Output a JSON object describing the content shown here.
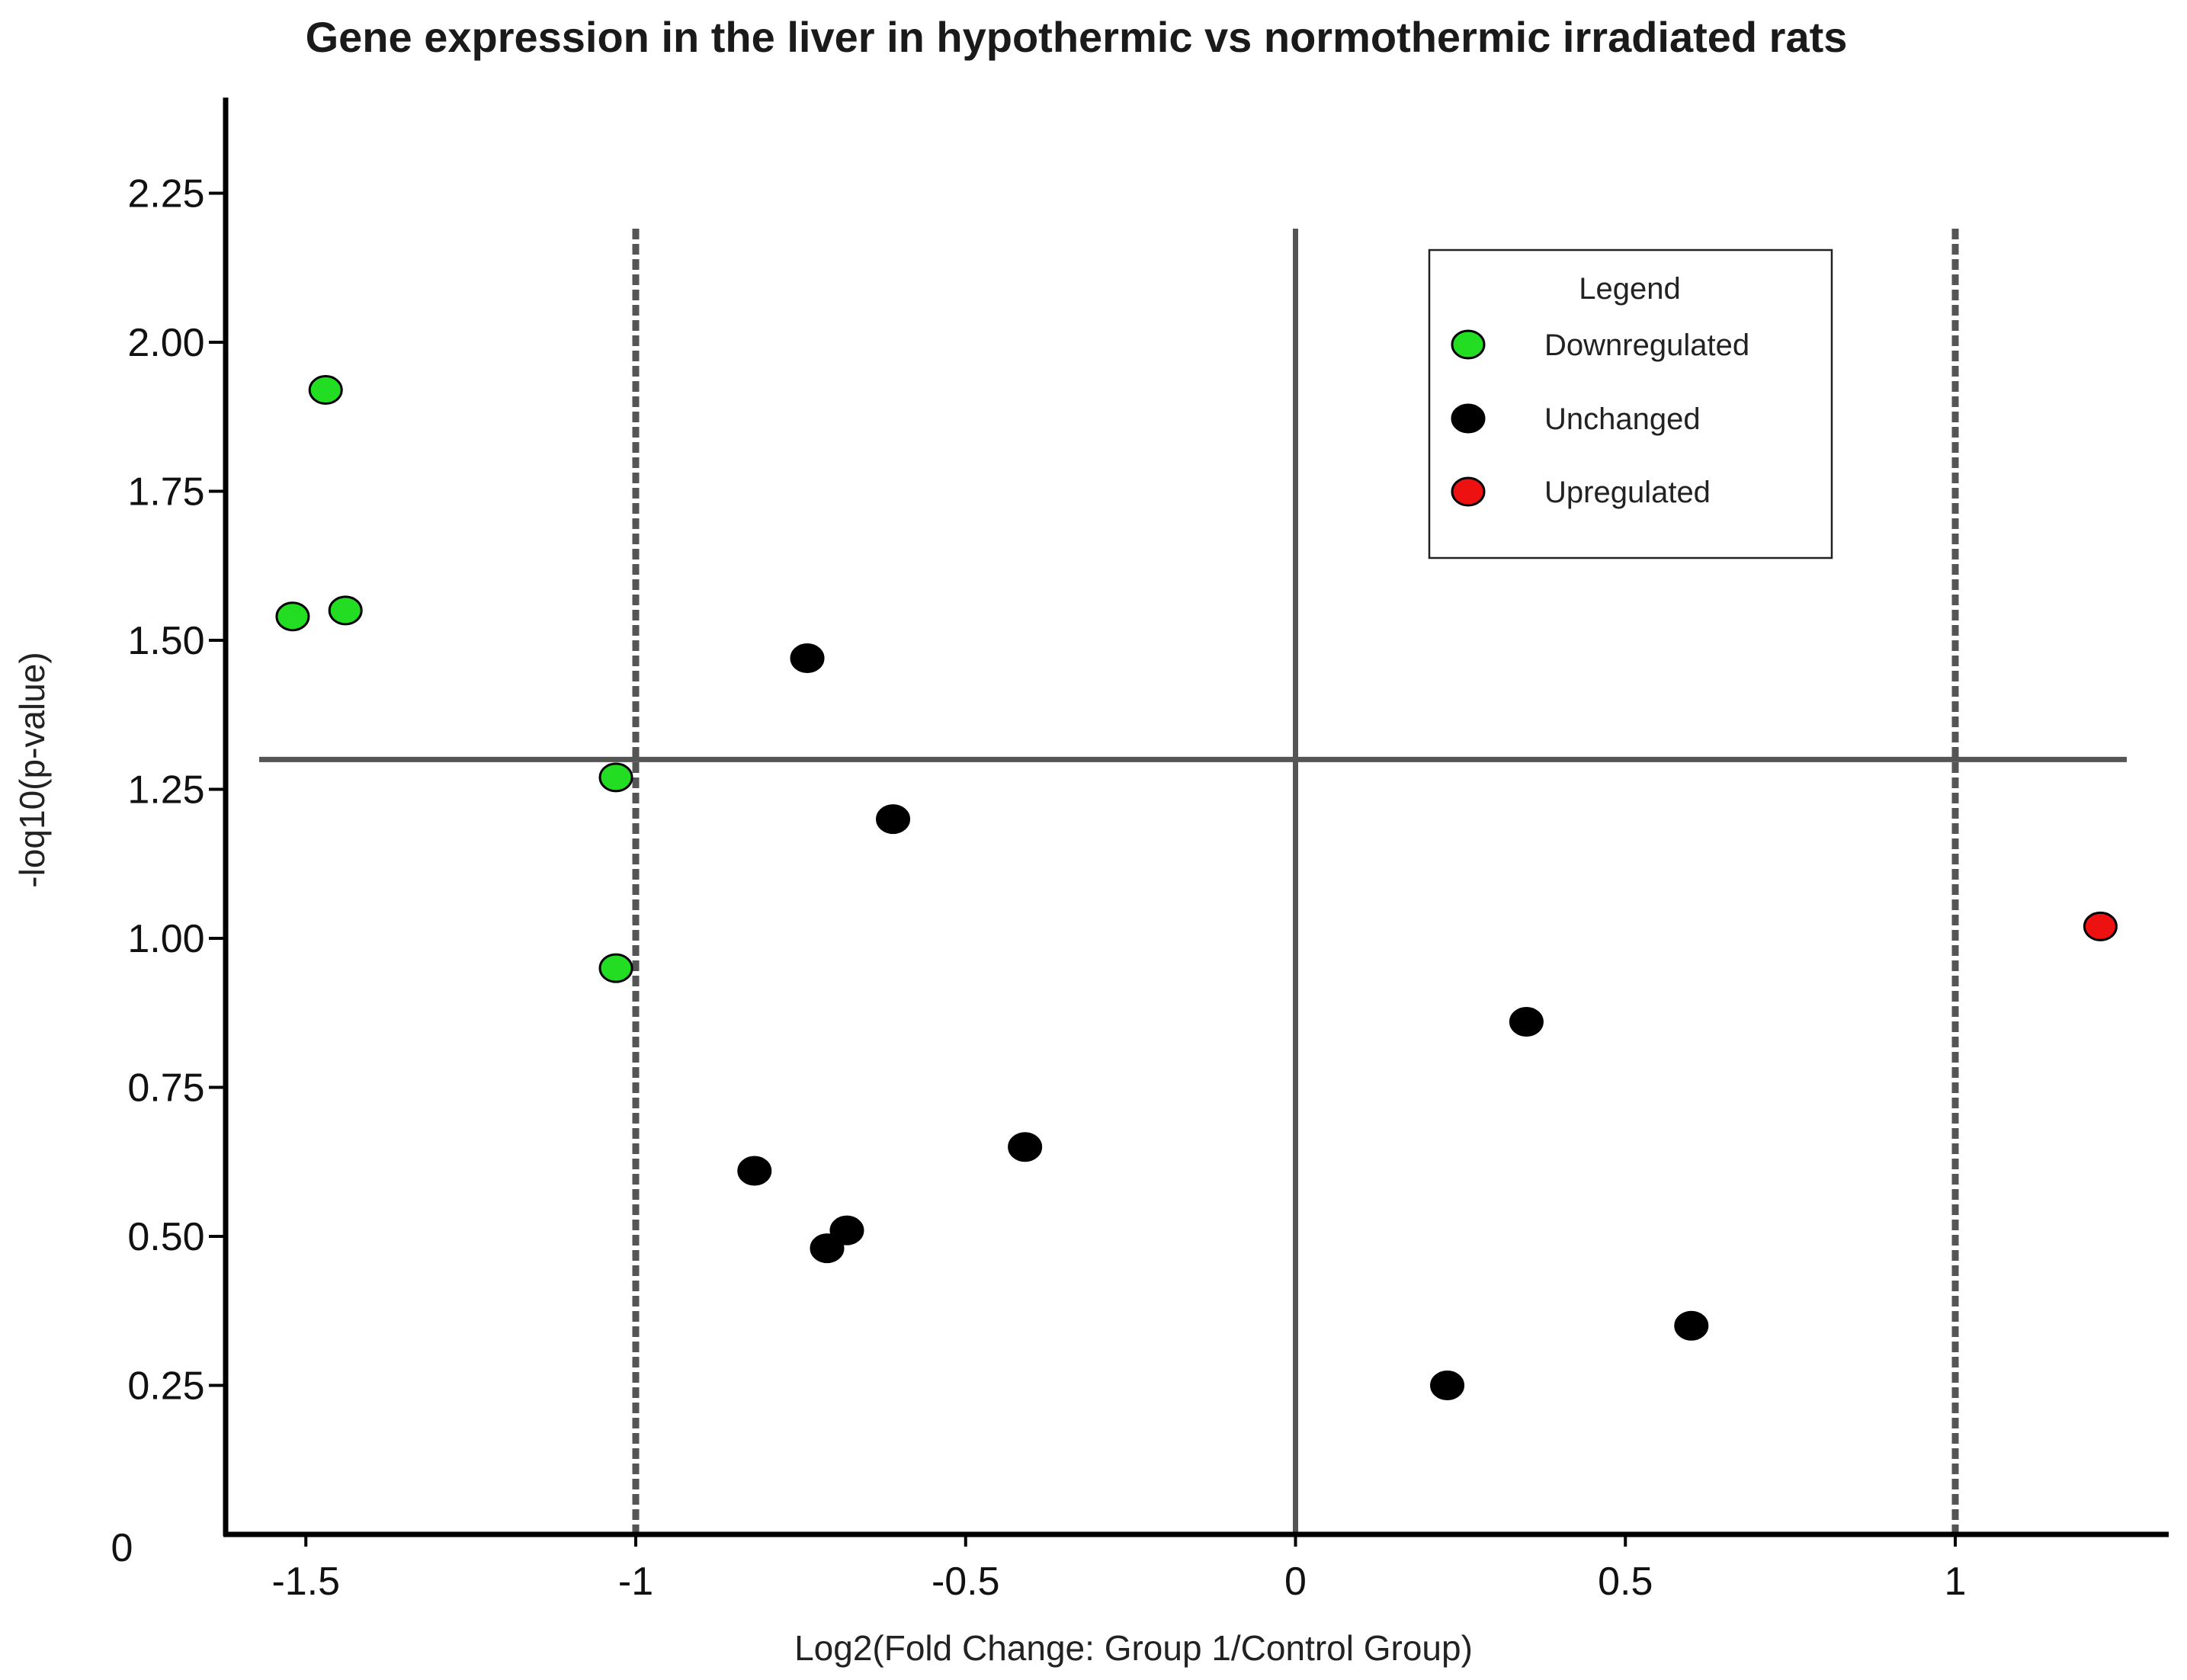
{
  "chart_data": {
    "type": "scatter",
    "title": "Gene expression in the liver in hypothermic vs normothermic irradiated rats",
    "xlabel": "Log2(Fold Change: Group 1/Control Group)",
    "ylabel": "-loq10(p-value)",
    "xlim": [
      -1.58,
      1.33
    ],
    "ylim": [
      0,
      2.35
    ],
    "x_ticks": [
      {
        "value": -1.5,
        "label": "-1.5"
      },
      {
        "value": -1,
        "label": "-1"
      },
      {
        "value": -0.5,
        "label": "-0.5"
      },
      {
        "value": 0,
        "label": "0"
      },
      {
        "value": 0.5,
        "label": "0.5"
      },
      {
        "value": 1,
        "label": "1"
      }
    ],
    "y_ticks": [
      {
        "value": 0,
        "label": "0"
      },
      {
        "value": 0.25,
        "label": "0.25"
      },
      {
        "value": 0.5,
        "label": "0.50"
      },
      {
        "value": 0.75,
        "label": "0.75"
      },
      {
        "value": 1.0,
        "label": "1.00"
      },
      {
        "value": 1.25,
        "label": "1.25"
      },
      {
        "value": 1.5,
        "label": "1.50"
      },
      {
        "value": 1.75,
        "label": "1.75"
      },
      {
        "value": 2.0,
        "label": "2.00"
      },
      {
        "value": 2.25,
        "label": "2.25"
      }
    ],
    "reference_lines": {
      "fold_change_thresholds": [
        -1,
        1
      ],
      "zero_line": 0,
      "significance_line": 1.3
    },
    "legend": {
      "title": "Legend",
      "position": "top-right",
      "entries": [
        {
          "label": "Downregulated",
          "color": "#22dd22"
        },
        {
          "label": "Unchanged",
          "color": "#000000"
        },
        {
          "label": "Upregulated",
          "color": "#ee1111"
        }
      ]
    },
    "series": [
      {
        "name": "Downregulated",
        "color": "#22dd22",
        "points": [
          {
            "x": -1.47,
            "y": 1.92
          },
          {
            "x": -1.52,
            "y": 1.54
          },
          {
            "x": -1.44,
            "y": 1.55
          },
          {
            "x": -1.03,
            "y": 1.27
          },
          {
            "x": -1.03,
            "y": 0.95
          }
        ]
      },
      {
        "name": "Unchanged",
        "color": "#000000",
        "points": [
          {
            "x": -0.74,
            "y": 1.47
          },
          {
            "x": -0.61,
            "y": 1.2
          },
          {
            "x": -0.82,
            "y": 0.61
          },
          {
            "x": -0.41,
            "y": 0.65
          },
          {
            "x": -0.68,
            "y": 0.51
          },
          {
            "x": -0.71,
            "y": 0.48
          },
          {
            "x": 0.35,
            "y": 0.86
          },
          {
            "x": 0.6,
            "y": 0.35
          },
          {
            "x": 0.23,
            "y": 0.25
          }
        ]
      },
      {
        "name": "Upregulated",
        "color": "#ee1111",
        "points": [
          {
            "x": 1.22,
            "y": 1.02
          }
        ]
      }
    ]
  }
}
